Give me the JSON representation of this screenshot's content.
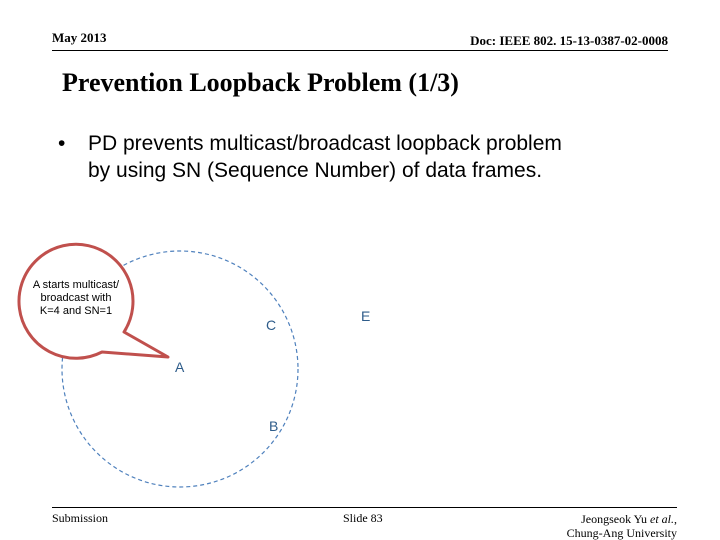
{
  "header": {
    "date": "May 2013",
    "doc_id": "Doc: IEEE 802. 15-13-0387-02-0008"
  },
  "slide": {
    "title": "Prevention Loopback Problem (1/3)",
    "bullet_marker": "•",
    "bullet_line1": "PD prevents multicast/broadcast loopback problem",
    "bullet_line2": "by using SN (Sequence Number) of data frames."
  },
  "diagram": {
    "callout_line1": "A starts multicast/",
    "callout_line2": "broadcast with",
    "callout_line3": "K=4 and SN=1",
    "nodes": {
      "a": "A",
      "b": "B",
      "c": "C",
      "e": "E"
    },
    "colors": {
      "circle_stroke": "#4f81bd",
      "callout_fill": "#c0504d",
      "node_text": "#2e5c8a"
    }
  },
  "footer": {
    "submission": "Submission",
    "slide_number": "Slide 83",
    "author_prefix": "Jeongseok Yu ",
    "author_etal": "et al.",
    "author_suffix": ",",
    "affiliation": "Chung-Ang University"
  }
}
